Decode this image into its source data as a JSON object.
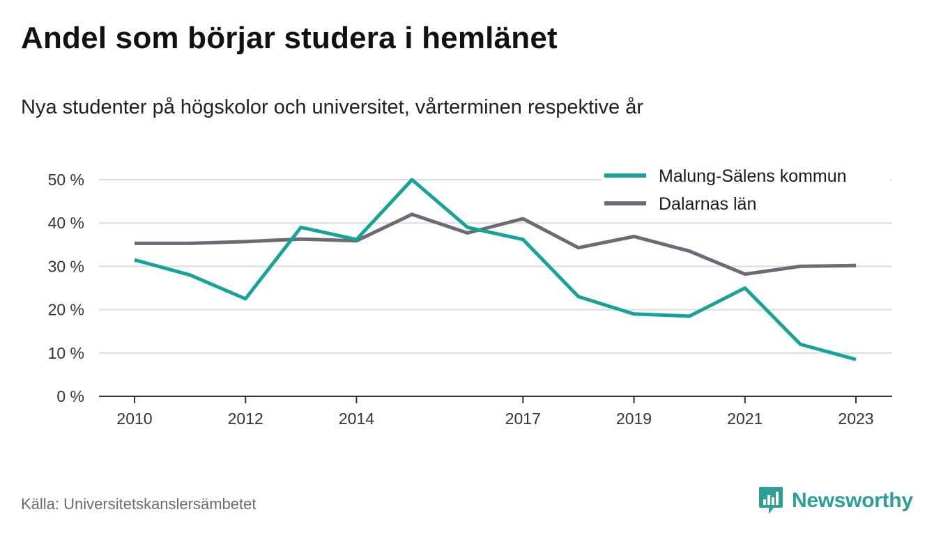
{
  "header": {
    "title": "Andel som börjar studera i hemlänet",
    "subtitle": "Nya studenter på högskolor och universitet, vårterminen respektive år"
  },
  "footer": {
    "source": "Källa: Universitetskanslersämbetet",
    "brand": "Newsworthy",
    "brand_color": "#2e9e97"
  },
  "chart_data": {
    "type": "line",
    "title": "Andel som börjar studera i hemlänet",
    "subtitle": "Nya studenter på högskolor och universitet, vårterminen respektive år",
    "x": [
      2010,
      2011,
      2012,
      2013,
      2014,
      2015,
      2016,
      2017,
      2018,
      2019,
      2020,
      2021,
      2022,
      2023
    ],
    "x_tick_labels": [
      "2010",
      "2012",
      "2014",
      "2017",
      "2019",
      "2021",
      "2023"
    ],
    "y_ticks": [
      0,
      10,
      20,
      30,
      40,
      50
    ],
    "y_tick_labels": [
      "0 %",
      "10 %",
      "20 %",
      "30 %",
      "40 %",
      "50 %"
    ],
    "ylim": [
      0,
      50
    ],
    "xlim": [
      2010,
      2023
    ],
    "grid": "horizontal",
    "legend_position": "top-right",
    "series": [
      {
        "name": "Malung-Sälens kommun",
        "color": "#17a398",
        "values": [
          31.5,
          28,
          22.5,
          39,
          36.2,
          50,
          39,
          36.2,
          23,
          19,
          18.5,
          25,
          12,
          8.5
        ]
      },
      {
        "name": "Dalarnas län",
        "color": "#6b6b73",
        "values": [
          35.3,
          35.3,
          35.7,
          36.3,
          35.9,
          42,
          37.7,
          41,
          34.3,
          36.9,
          33.5,
          28.2,
          30,
          30.2
        ]
      }
    ]
  }
}
